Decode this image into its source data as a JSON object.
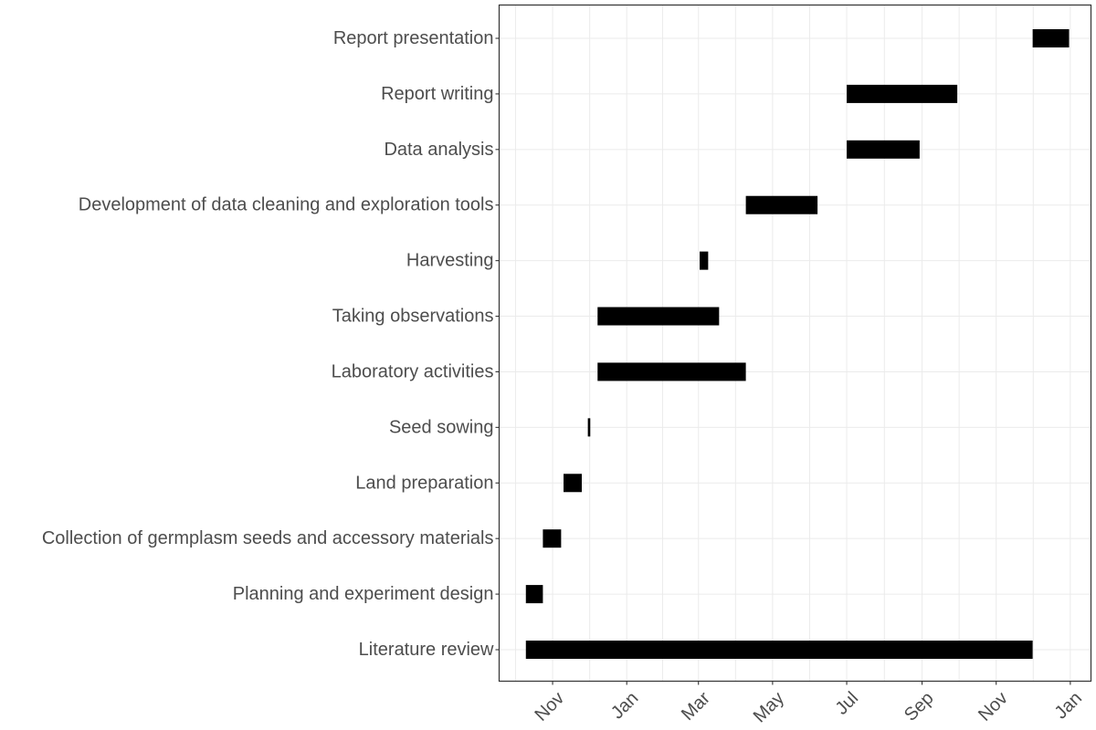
{
  "chart_data": {
    "type": "gantt",
    "title": "",
    "xlabel": "",
    "ylabel": "",
    "xlim": [
      "2020-09-18",
      "2022-01-18"
    ],
    "grid": true,
    "x_ticks": [
      {
        "date": "2020-11-01",
        "label": "Nov"
      },
      {
        "date": "2021-01-01",
        "label": "Jan"
      },
      {
        "date": "2021-03-01",
        "label": "Mar"
      },
      {
        "date": "2021-05-01",
        "label": "May"
      },
      {
        "date": "2021-07-01",
        "label": "Jul"
      },
      {
        "date": "2021-09-01",
        "label": "Sep"
      },
      {
        "date": "2021-11-01",
        "label": "Nov"
      },
      {
        "date": "2022-01-01",
        "label": "Jan"
      }
    ],
    "tasks": [
      {
        "name": "Literature review",
        "start": "2020-10-10",
        "end": "2021-12-01"
      },
      {
        "name": "Planning and experiment design",
        "start": "2020-10-10",
        "end": "2020-10-24"
      },
      {
        "name": "Collection of germplasm seeds and accessory materials",
        "start": "2020-10-24",
        "end": "2020-11-08"
      },
      {
        "name": "Land preparation",
        "start": "2020-11-10",
        "end": "2020-11-25"
      },
      {
        "name": "Seed sowing",
        "start": "2020-11-30",
        "end": "2020-12-02"
      },
      {
        "name": "Laboratory activities",
        "start": "2020-12-08",
        "end": "2021-04-09"
      },
      {
        "name": "Taking observations",
        "start": "2020-12-08",
        "end": "2021-03-18"
      },
      {
        "name": "Harvesting",
        "start": "2021-03-02",
        "end": "2021-03-09"
      },
      {
        "name": "Development of data cleaning and exploration tools",
        "start": "2021-04-09",
        "end": "2021-06-07"
      },
      {
        "name": "Data analysis",
        "start": "2021-07-01",
        "end": "2021-08-30"
      },
      {
        "name": "Report writing",
        "start": "2021-07-01",
        "end": "2021-09-30"
      },
      {
        "name": "Report presentation",
        "start": "2021-12-01",
        "end": "2021-12-31"
      }
    ]
  }
}
